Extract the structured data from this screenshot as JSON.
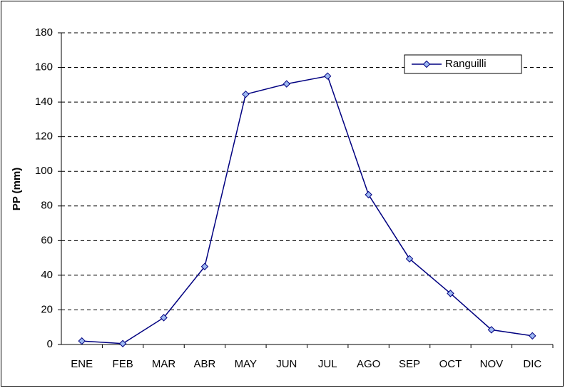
{
  "chart_data": {
    "type": "line",
    "y_label": "PP (mm)",
    "categories": [
      "ENE",
      "FEB",
      "MAR",
      "ABR",
      "MAY",
      "JUN",
      "JUL",
      "AGO",
      "SEP",
      "OCT",
      "NOV",
      "DIC"
    ],
    "series": [
      {
        "name": "Ranguilli",
        "color": "#000080",
        "marker_color": "#9db9f2",
        "values": [
          2,
          0.5,
          15.5,
          45,
          144.5,
          150.5,
          155,
          86.5,
          49.5,
          29.5,
          8.5,
          5
        ]
      }
    ],
    "ylim": [
      0,
      180
    ],
    "yticks": [
      0,
      20,
      40,
      60,
      80,
      100,
      120,
      140,
      160,
      180
    ],
    "grid": true,
    "legend": "top-right"
  }
}
